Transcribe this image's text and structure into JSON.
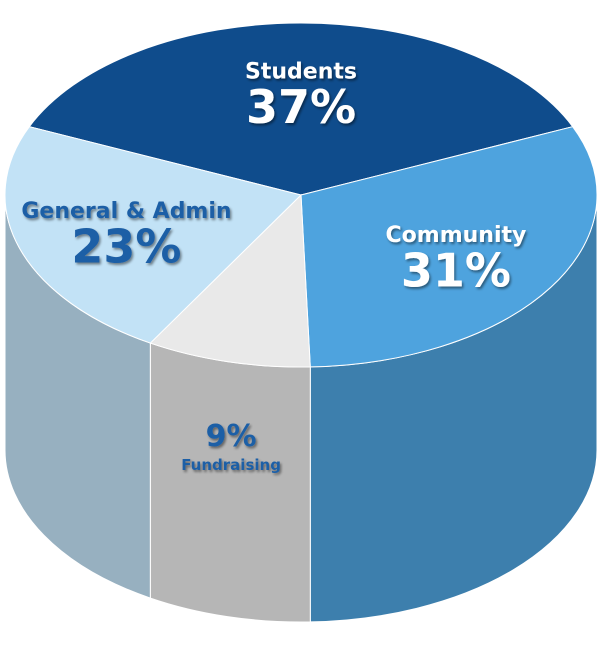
{
  "chart_data": {
    "type": "pie3d",
    "categories": [
      "Students",
      "Community",
      "Fundraising",
      "General & Admin"
    ],
    "values": [
      37,
      31,
      9,
      23
    ],
    "value_labels": [
      "37%",
      "31%",
      "9%",
      "23%"
    ],
    "colors": [
      "#0f4c8c",
      "#4ea3de",
      "#e9e9e9",
      "#c2e2f6"
    ]
  }
}
